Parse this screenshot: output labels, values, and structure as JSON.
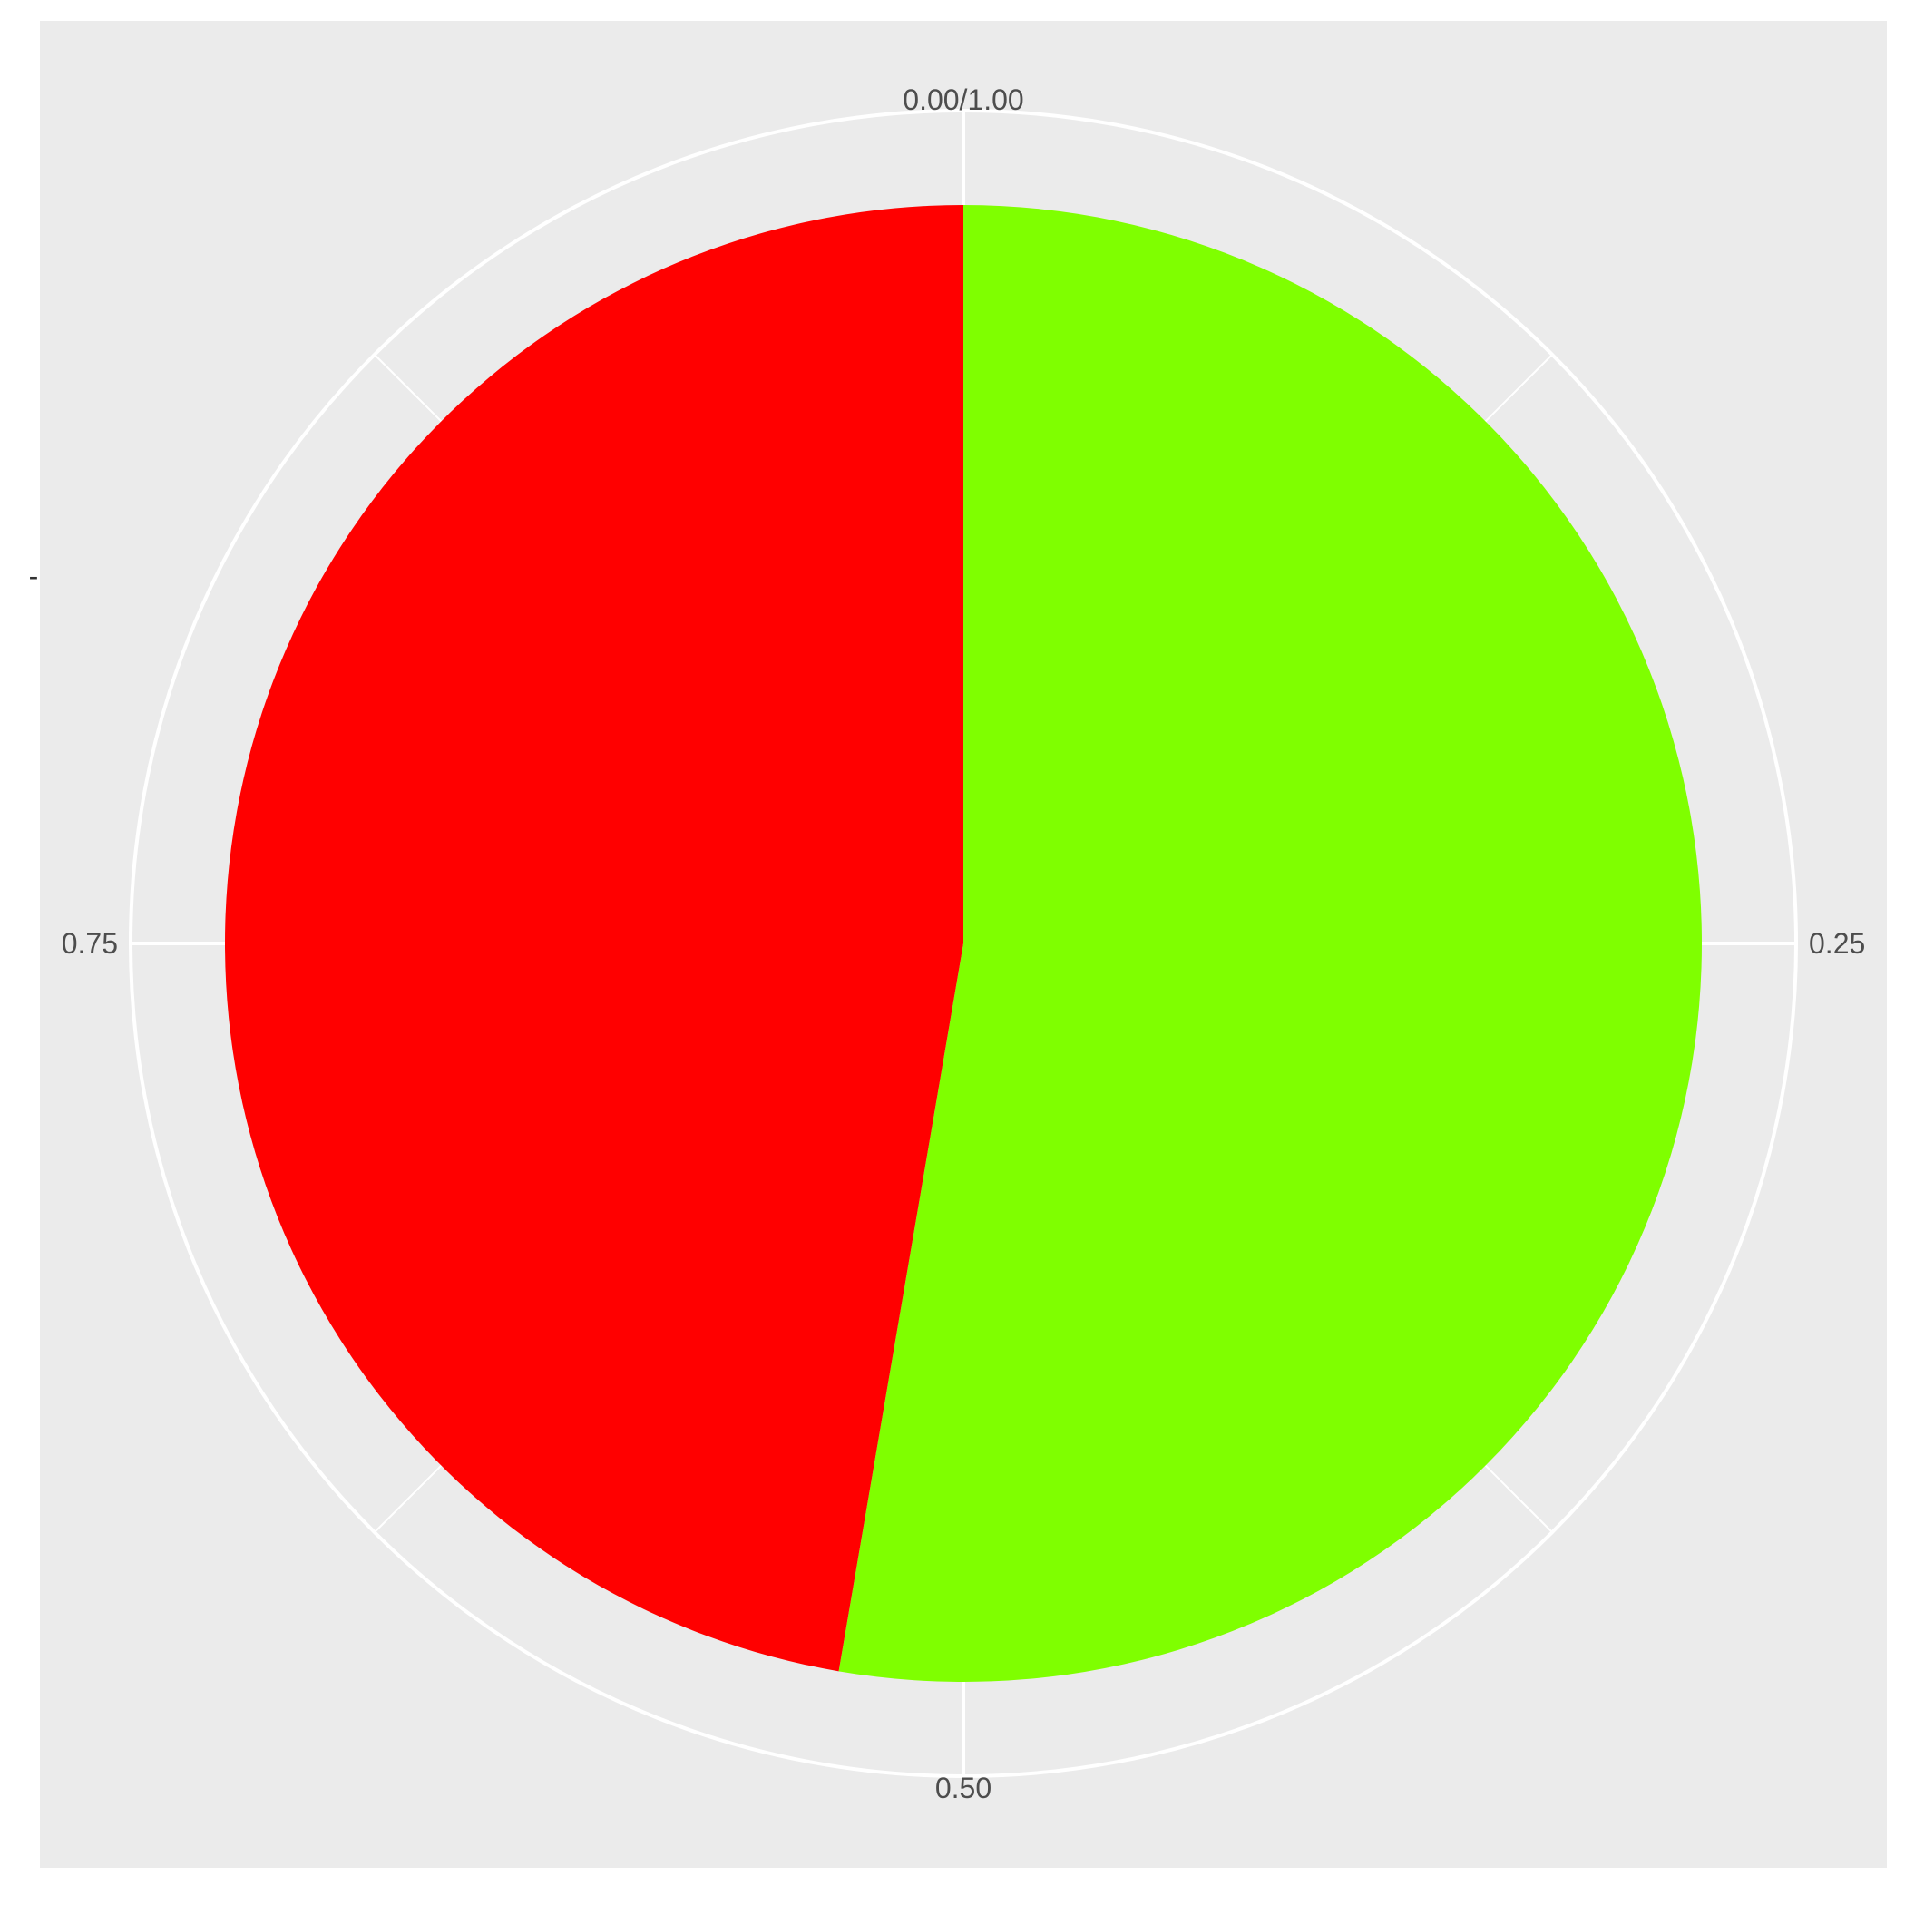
{
  "chart_data": {
    "type": "pie",
    "coordinate": "polar",
    "slices": [
      {
        "start": 0.0,
        "value": 0.527,
        "color": "#7FFF00"
      },
      {
        "start": 0.527,
        "value": 0.473,
        "color": "#FF0000"
      }
    ],
    "angular_ticks": [
      {
        "value": 0.0,
        "label": "0.00/1.00"
      },
      {
        "value": 0.25,
        "label": "0.25"
      },
      {
        "value": 0.5,
        "label": "0.50"
      },
      {
        "value": 0.75,
        "label": "0.75"
      }
    ],
    "minor_angular_ticks": [
      0.125,
      0.375,
      0.625,
      0.875
    ],
    "y_tick_label": "-",
    "background": "#EBEBEB",
    "grid_color": "#FFFFFF",
    "legend": "none"
  }
}
